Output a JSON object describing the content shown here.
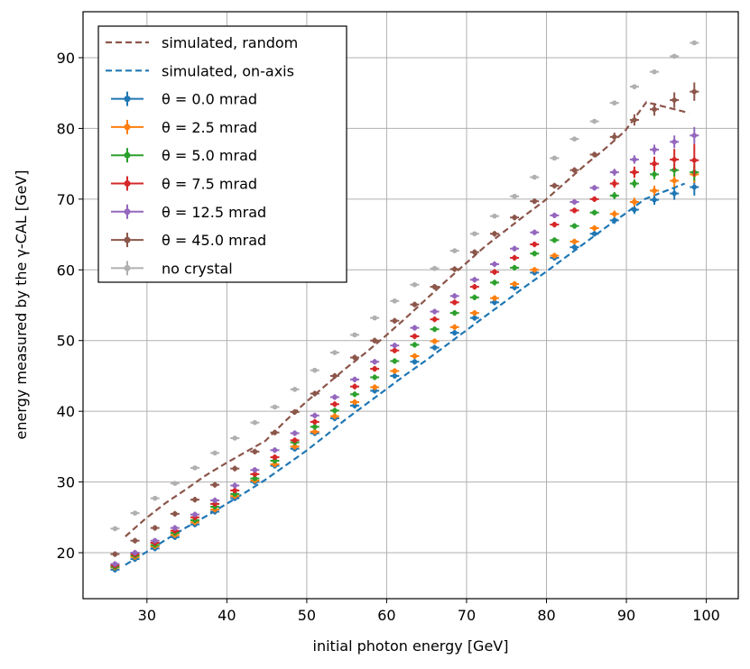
{
  "chart_data": {
    "type": "scatter",
    "title": "",
    "xlabel": "initial photon energy [GeV]",
    "ylabel": "energy measured by the γ-CAL [GeV]",
    "xlim": [
      22,
      104
    ],
    "ylim": [
      13.5,
      96.5
    ],
    "xticks": [
      30,
      40,
      50,
      60,
      70,
      80,
      90,
      100
    ],
    "yticks": [
      20,
      30,
      40,
      50,
      60,
      70,
      80,
      90
    ],
    "grid": true,
    "legend_position": "top-left",
    "x": [
      26,
      28.5,
      31,
      33.5,
      36,
      38.5,
      41,
      43.5,
      46,
      48.5,
      51,
      53.5,
      56,
      58.5,
      61,
      63.5,
      66,
      68.5,
      71,
      73.5,
      76,
      78.5,
      81,
      83.5,
      86,
      88.5,
      91,
      93.5,
      96,
      98.5
    ],
    "lines": [
      {
        "name": "simulated, random",
        "color": "#8c564b",
        "x": [
          27.3,
          29.8,
          32.3,
          34.8,
          37.3,
          39.8,
          42.3,
          44.8,
          47.3,
          49.8,
          52.3,
          54.8,
          57.3,
          59.8,
          62.3,
          64.8,
          67.3,
          69.8,
          72.3,
          74.8,
          77.3,
          79.8,
          82.3,
          84.8,
          87.3,
          89.8,
          92.5,
          95,
          97.8
        ],
        "y": [
          22.3,
          24.8,
          27.0,
          28.9,
          30.9,
          32.6,
          34.2,
          35.8,
          38.6,
          41.2,
          43.6,
          46.0,
          48.2,
          50.6,
          53.1,
          55.7,
          58.3,
          60.8,
          63.3,
          65.5,
          67.7,
          69.8,
          72.3,
          74.8,
          77.1,
          79.6,
          83.7,
          83.0,
          82.2
        ]
      },
      {
        "name": "simulated, on-axis",
        "color": "#1f77b4",
        "x": [
          27.3,
          29.8,
          32.3,
          34.8,
          37.3,
          39.8,
          42.3,
          44.8,
          47.3,
          49.8,
          52.3,
          54.8,
          57.3,
          59.8,
          62.3,
          64.8,
          67.3,
          69.8,
          72.3,
          74.8,
          77.3,
          79.8,
          82.3,
          84.8,
          87.3,
          89.8,
          92.3,
          94.8,
          97.3
        ],
        "y": [
          18.3,
          20.0,
          21.8,
          23.5,
          25.1,
          26.8,
          28.5,
          30.3,
          32.3,
          34.3,
          36.5,
          38.8,
          40.9,
          43.0,
          45.1,
          47.1,
          49.2,
          51.3,
          53.4,
          55.5,
          57.6,
          59.6,
          61.7,
          63.8,
          65.9,
          67.9,
          70.0,
          71.1,
          72.2
        ]
      }
    ],
    "series": [
      {
        "name": "θ = 0.0 mrad",
        "color": "#1f77b4",
        "values": [
          17.6,
          19.1,
          20.6,
          22.2,
          24.0,
          25.8,
          27.7,
          30.0,
          32.3,
          34.7,
          36.9,
          39.0,
          40.8,
          42.9,
          45.0,
          47.0,
          49.0,
          51.1,
          53.2,
          55.4,
          57.5,
          59.6,
          61.7,
          63.2,
          65.1,
          67.0,
          68.5,
          69.9,
          70.8,
          71.7
        ],
        "yerr": [
          0.4,
          0.4,
          0.4,
          0.4,
          0.4,
          0.4,
          0.4,
          0.4,
          0.4,
          0.4,
          0.4,
          0.4,
          0.4,
          0.4,
          0.4,
          0.4,
          0.4,
          0.4,
          0.4,
          0.4,
          0.4,
          0.4,
          0.4,
          0.4,
          0.4,
          0.5,
          0.6,
          0.7,
          0.9,
          1.2
        ]
      },
      {
        "name": "θ = 2.5 mrad",
        "color": "#ff7f0e",
        "values": [
          17.9,
          19.4,
          20.9,
          22.5,
          24.3,
          26.1,
          28.0,
          30.2,
          32.5,
          35.0,
          37.1,
          39.3,
          41.3,
          43.4,
          45.7,
          47.8,
          49.9,
          51.9,
          53.9,
          56.0,
          58.0,
          60.0,
          62.0,
          64.0,
          65.9,
          67.9,
          69.6,
          71.2,
          72.6,
          73.5
        ],
        "yerr": [
          0.4,
          0.4,
          0.4,
          0.4,
          0.4,
          0.4,
          0.4,
          0.4,
          0.4,
          0.4,
          0.4,
          0.4,
          0.4,
          0.4,
          0.4,
          0.4,
          0.4,
          0.4,
          0.4,
          0.4,
          0.4,
          0.4,
          0.4,
          0.4,
          0.4,
          0.5,
          0.6,
          0.7,
          0.9,
          1.2
        ]
      },
      {
        "name": "θ = 5.0 mrad",
        "color": "#2ca02c",
        "values": [
          18.0,
          19.6,
          21.1,
          22.8,
          24.6,
          26.5,
          28.3,
          30.5,
          33.0,
          35.6,
          37.8,
          40.1,
          42.4,
          44.8,
          47.1,
          49.4,
          51.6,
          53.9,
          56.1,
          58.2,
          60.3,
          62.3,
          64.2,
          66.2,
          68.1,
          70.5,
          72.2,
          73.5,
          74.1,
          73.8
        ],
        "yerr": [
          0.4,
          0.4,
          0.4,
          0.4,
          0.4,
          0.4,
          0.4,
          0.4,
          0.4,
          0.4,
          0.4,
          0.4,
          0.4,
          0.4,
          0.4,
          0.4,
          0.4,
          0.4,
          0.4,
          0.4,
          0.4,
          0.4,
          0.4,
          0.4,
          0.4,
          0.5,
          0.6,
          0.7,
          0.9,
          1.2
        ]
      },
      {
        "name": "θ = 7.5 mrad",
        "color": "#d62728",
        "values": [
          18.2,
          19.8,
          21.4,
          23.1,
          25.0,
          26.9,
          28.8,
          31.1,
          33.5,
          35.9,
          38.5,
          41.0,
          43.5,
          46.0,
          48.6,
          50.6,
          53.0,
          55.4,
          57.6,
          59.7,
          61.7,
          63.6,
          66.4,
          68.4,
          70.0,
          72.2,
          73.8,
          75.0,
          75.6,
          75.5
        ],
        "yerr": [
          0.4,
          0.4,
          0.4,
          0.4,
          0.4,
          0.4,
          0.4,
          0.4,
          0.4,
          0.4,
          0.4,
          0.4,
          0.4,
          0.4,
          0.4,
          0.4,
          0.4,
          0.4,
          0.4,
          0.4,
          0.4,
          0.4,
          0.4,
          0.4,
          0.4,
          0.6,
          0.8,
          1.0,
          1.5,
          2.3
        ]
      },
      {
        "name": "θ = 12.5 mrad",
        "color": "#9467bd",
        "values": [
          18.4,
          20.0,
          21.7,
          23.5,
          25.4,
          27.4,
          29.5,
          31.7,
          34.5,
          36.9,
          39.4,
          42.0,
          44.5,
          47.0,
          49.3,
          51.8,
          54.1,
          56.3,
          58.6,
          60.8,
          63.0,
          65.3,
          67.7,
          69.6,
          71.6,
          73.8,
          75.6,
          77.0,
          78.1,
          79.0
        ],
        "yerr": [
          0.4,
          0.4,
          0.4,
          0.4,
          0.4,
          0.4,
          0.4,
          0.4,
          0.4,
          0.4,
          0.4,
          0.4,
          0.4,
          0.4,
          0.4,
          0.4,
          0.4,
          0.4,
          0.4,
          0.4,
          0.4,
          0.4,
          0.4,
          0.4,
          0.4,
          0.5,
          0.6,
          0.7,
          0.9,
          1.2
        ]
      },
      {
        "name": "θ = 45.0 mrad",
        "color": "#8c564b",
        "values": [
          19.8,
          21.7,
          23.5,
          25.5,
          27.5,
          29.6,
          31.9,
          34.3,
          37.0,
          39.9,
          42.5,
          45.0,
          47.6,
          50.0,
          52.8,
          55.1,
          57.6,
          60.1,
          62.5,
          65.1,
          67.4,
          69.7,
          71.9,
          74.1,
          76.3,
          78.8,
          81.2,
          82.7,
          84.0,
          85.2
        ],
        "yerr": [
          0.4,
          0.4,
          0.4,
          0.4,
          0.4,
          0.4,
          0.4,
          0.4,
          0.4,
          0.4,
          0.4,
          0.4,
          0.4,
          0.4,
          0.4,
          0.4,
          0.4,
          0.4,
          0.4,
          0.4,
          0.4,
          0.4,
          0.4,
          0.4,
          0.4,
          0.6,
          0.8,
          0.9,
          1.1,
          1.3
        ]
      },
      {
        "name": "no crystal",
        "color": "#b0b0b0",
        "values": [
          23.4,
          25.6,
          27.7,
          29.8,
          32.0,
          34.1,
          36.2,
          38.4,
          40.6,
          43.1,
          45.8,
          48.3,
          50.8,
          53.2,
          55.6,
          57.9,
          60.2,
          62.7,
          65.1,
          67.6,
          70.4,
          73.1,
          75.8,
          78.5,
          81.0,
          83.6,
          85.9,
          88.0,
          90.2,
          92.1
        ],
        "yerr": [
          0.2,
          0.2,
          0.2,
          0.2,
          0.2,
          0.2,
          0.2,
          0.2,
          0.2,
          0.2,
          0.2,
          0.2,
          0.2,
          0.2,
          0.2,
          0.2,
          0.2,
          0.2,
          0.2,
          0.2,
          0.2,
          0.2,
          0.2,
          0.2,
          0.2,
          0.2,
          0.2,
          0.2,
          0.2,
          0.2
        ]
      }
    ]
  }
}
